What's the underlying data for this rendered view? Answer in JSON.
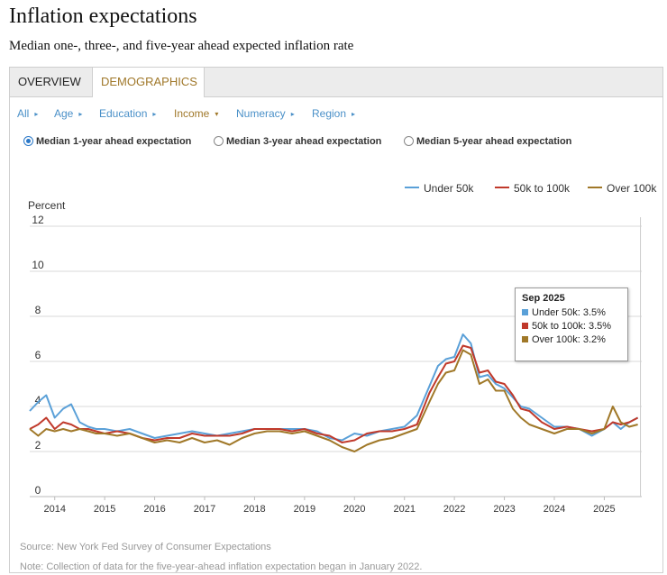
{
  "header": {
    "title": "Inflation expectations",
    "subtitle": "Median one-, three-, and five-year ahead expected inflation rate"
  },
  "tabs": [
    {
      "label": "OVERVIEW"
    },
    {
      "label": "DEMOGRAPHICS"
    }
  ],
  "filters": [
    {
      "label": "All"
    },
    {
      "label": "Age"
    },
    {
      "label": "Education"
    },
    {
      "label": "Income"
    },
    {
      "label": "Numeracy"
    },
    {
      "label": "Region"
    }
  ],
  "radios": [
    {
      "label": "Median 1-year ahead expectation",
      "checked": true
    },
    {
      "label": "Median 3-year ahead expectation",
      "checked": false
    },
    {
      "label": "Median 5-year ahead expectation",
      "checked": false
    }
  ],
  "colors": {
    "under50k": "#5aa0d8",
    "50k_100k": "#c0392b",
    "over100k": "#a07828",
    "grid": "#d9d9d9"
  },
  "tooltip": {
    "title": "Sep 2025",
    "rows": [
      "Under 50k: 3.5%",
      "50k to 100k: 3.5%",
      "Over 100k: 3.2%"
    ]
  },
  "footer": {
    "source": "Source: New York Fed Survey of Consumer Expectations",
    "note": "Note: Collection of data for the five-year-ahead inflation expectation began in January 2022."
  },
  "chart_data": {
    "type": "line",
    "title": "Median 1-year ahead expectation",
    "ylabel": "Percent",
    "xlabel": "",
    "ylim": [
      0,
      12
    ],
    "yticks": [
      0,
      2,
      4,
      6,
      8,
      10,
      12
    ],
    "xlim": [
      2013.5,
      2025.75
    ],
    "xticks": [
      2014,
      2015,
      2016,
      2017,
      2018,
      2019,
      2020,
      2021,
      2022,
      2023,
      2024,
      2025
    ],
    "grid": true,
    "legend_position": "top-right",
    "series": [
      {
        "name": "Under 50k",
        "x": [
          2013.5,
          2013.67,
          2013.83,
          2014.0,
          2014.17,
          2014.33,
          2014.5,
          2014.67,
          2014.83,
          2015.0,
          2015.25,
          2015.5,
          2015.75,
          2016.0,
          2016.25,
          2016.5,
          2016.75,
          2017.0,
          2017.25,
          2017.5,
          2017.75,
          2018.0,
          2018.25,
          2018.5,
          2018.75,
          2019.0,
          2019.25,
          2019.5,
          2019.75,
          2020.0,
          2020.25,
          2020.5,
          2020.75,
          2021.0,
          2021.25,
          2021.5,
          2021.67,
          2021.83,
          2022.0,
          2022.17,
          2022.33,
          2022.5,
          2022.67,
          2022.83,
          2023.0,
          2023.17,
          2023.33,
          2023.5,
          2023.75,
          2024.0,
          2024.25,
          2024.5,
          2024.75,
          2025.0,
          2025.17,
          2025.33,
          2025.5,
          2025.67
        ],
        "values": [
          3.8,
          4.2,
          4.5,
          3.5,
          3.9,
          4.1,
          3.3,
          3.1,
          3.0,
          3.0,
          2.9,
          3.0,
          2.8,
          2.6,
          2.7,
          2.8,
          2.9,
          2.8,
          2.7,
          2.8,
          2.9,
          3.0,
          3.0,
          3.0,
          3.0,
          3.0,
          2.9,
          2.6,
          2.5,
          2.8,
          2.7,
          2.9,
          3.0,
          3.1,
          3.6,
          4.9,
          5.8,
          6.1,
          6.2,
          7.2,
          6.8,
          5.3,
          5.4,
          5.0,
          4.8,
          4.4,
          4.0,
          3.9,
          3.5,
          3.1,
          3.1,
          3.0,
          2.7,
          3.0,
          3.3,
          3.0,
          3.3,
          3.5
        ]
      },
      {
        "name": "50k to 100k",
        "x": [
          2013.5,
          2013.67,
          2013.83,
          2014.0,
          2014.17,
          2014.33,
          2014.5,
          2014.67,
          2014.83,
          2015.0,
          2015.25,
          2015.5,
          2015.75,
          2016.0,
          2016.25,
          2016.5,
          2016.75,
          2017.0,
          2017.25,
          2017.5,
          2017.75,
          2018.0,
          2018.25,
          2018.5,
          2018.75,
          2019.0,
          2019.25,
          2019.5,
          2019.75,
          2020.0,
          2020.25,
          2020.5,
          2020.75,
          2021.0,
          2021.25,
          2021.5,
          2021.67,
          2021.83,
          2022.0,
          2022.17,
          2022.33,
          2022.5,
          2022.67,
          2022.83,
          2023.0,
          2023.17,
          2023.33,
          2023.5,
          2023.75,
          2024.0,
          2024.25,
          2024.5,
          2024.75,
          2025.0,
          2025.17,
          2025.33,
          2025.5,
          2025.67
        ],
        "values": [
          3.0,
          3.2,
          3.5,
          3.0,
          3.3,
          3.2,
          3.0,
          3.0,
          2.9,
          2.8,
          2.9,
          2.8,
          2.6,
          2.5,
          2.6,
          2.6,
          2.8,
          2.7,
          2.7,
          2.7,
          2.8,
          3.0,
          3.0,
          3.0,
          2.9,
          3.0,
          2.8,
          2.7,
          2.4,
          2.5,
          2.8,
          2.9,
          2.9,
          3.0,
          3.2,
          4.6,
          5.3,
          5.9,
          6.0,
          6.7,
          6.6,
          5.5,
          5.6,
          5.1,
          5.0,
          4.5,
          3.9,
          3.8,
          3.3,
          3.0,
          3.1,
          3.0,
          2.9,
          3.0,
          3.3,
          3.2,
          3.3,
          3.5
        ]
      },
      {
        "name": "Over 100k",
        "x": [
          2013.5,
          2013.67,
          2013.83,
          2014.0,
          2014.17,
          2014.33,
          2014.5,
          2014.67,
          2014.83,
          2015.0,
          2015.25,
          2015.5,
          2015.75,
          2016.0,
          2016.25,
          2016.5,
          2016.75,
          2017.0,
          2017.25,
          2017.5,
          2017.75,
          2018.0,
          2018.25,
          2018.5,
          2018.75,
          2019.0,
          2019.25,
          2019.5,
          2019.75,
          2020.0,
          2020.25,
          2020.5,
          2020.75,
          2021.0,
          2021.25,
          2021.5,
          2021.67,
          2021.83,
          2022.0,
          2022.17,
          2022.33,
          2022.5,
          2022.67,
          2022.83,
          2023.0,
          2023.17,
          2023.33,
          2023.5,
          2023.75,
          2024.0,
          2024.25,
          2024.5,
          2024.75,
          2025.0,
          2025.17,
          2025.33,
          2025.5,
          2025.67
        ],
        "values": [
          3.0,
          2.7,
          3.0,
          2.9,
          3.0,
          2.9,
          3.0,
          2.9,
          2.8,
          2.8,
          2.7,
          2.8,
          2.6,
          2.4,
          2.5,
          2.4,
          2.6,
          2.4,
          2.5,
          2.3,
          2.6,
          2.8,
          2.9,
          2.9,
          2.8,
          2.9,
          2.7,
          2.5,
          2.2,
          2.0,
          2.3,
          2.5,
          2.6,
          2.8,
          3.0,
          4.2,
          5.0,
          5.5,
          5.6,
          6.5,
          6.3,
          5.0,
          5.2,
          4.7,
          4.7,
          3.9,
          3.5,
          3.2,
          3.0,
          2.8,
          3.0,
          3.0,
          2.8,
          3.0,
          4.0,
          3.3,
          3.1,
          3.2
        ]
      }
    ]
  }
}
